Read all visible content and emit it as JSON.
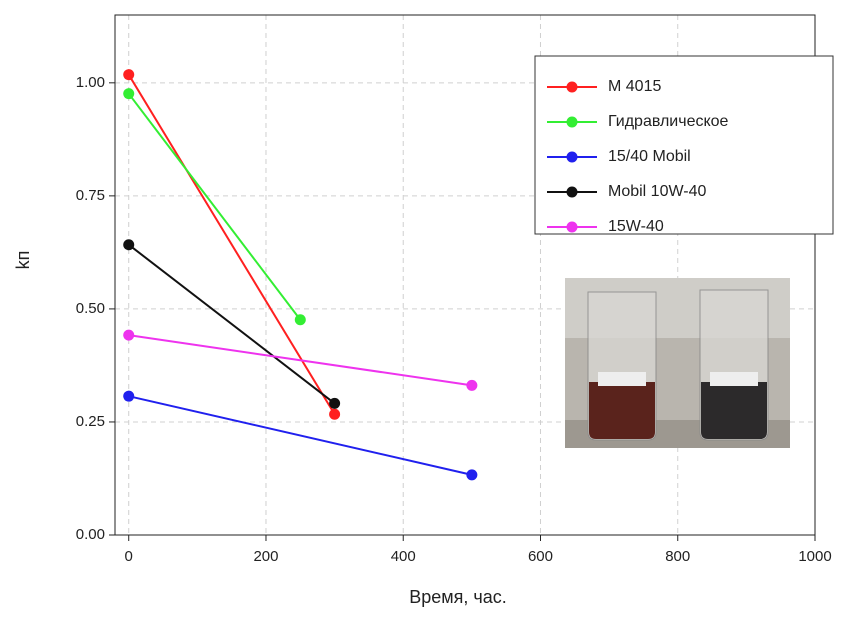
{
  "chart_data": {
    "type": "line",
    "x_label": "Время, час.",
    "y_label": "kп",
    "xlim": [
      -20,
      1000
    ],
    "ylim": [
      0,
      1.15
    ],
    "xticks": [
      0,
      200,
      400,
      600,
      800,
      1000
    ],
    "yticks": [
      {
        "value": 0,
        "label": "0.00"
      },
      0.25,
      {
        "value": 0.5,
        "label": "0.50"
      },
      0.75,
      {
        "value": 1,
        "label": "1.00"
      }
    ],
    "grid": true,
    "legend": "upper right",
    "series": [
      {
        "name": "M 4015",
        "color": "#ff2020",
        "x": [
          0,
          300
        ],
        "values": [
          1.018,
          0.267
        ]
      },
      {
        "name": "Гидравлическое",
        "color": "#33ee33",
        "x": [
          0,
          250
        ],
        "values": [
          0.976,
          0.476
        ]
      },
      {
        "name": "15/40 Mobil",
        "color": "#2020ee",
        "x": [
          0,
          500
        ],
        "values": [
          0.307,
          0.133
        ]
      },
      {
        "name": "Mobil 10W-40",
        "color": "#111111",
        "x": [
          0,
          300
        ],
        "values": [
          0.642,
          0.291
        ]
      },
      {
        "name": "15W-40",
        "color": "#ee33ee",
        "x": [
          0,
          500
        ],
        "values": [
          0.442,
          0.331
        ]
      }
    ]
  }
}
